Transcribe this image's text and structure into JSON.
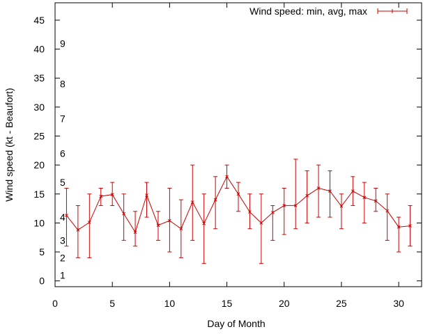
{
  "chart_data": {
    "type": "line",
    "title": "",
    "xlabel": "Day of Month",
    "ylabel": "Wind speed (kt - Beaufort)",
    "xlim": [
      0,
      32
    ],
    "ylim": [
      -1,
      48
    ],
    "xticks": [
      0,
      5,
      10,
      15,
      20,
      25,
      30
    ],
    "yticks": [
      0,
      5,
      10,
      15,
      20,
      25,
      30,
      35,
      40,
      45
    ],
    "grid": false,
    "legend": "top-right",
    "colors": {
      "series": "#cc0000",
      "axes": "#000000",
      "background": "#ffffff"
    },
    "series": [
      {
        "name": "Wind speed: min, avg, max",
        "x": [
          1,
          2,
          3,
          4,
          5,
          6,
          7,
          8,
          9,
          10,
          11,
          12,
          13,
          14,
          15,
          16,
          17,
          18,
          19,
          20,
          21,
          22,
          23,
          24,
          25,
          26,
          27,
          28,
          29,
          30,
          31
        ],
        "avg": [
          11.3,
          8.8,
          10.1,
          14.6,
          14.9,
          11.6,
          8.4,
          14.8,
          9.6,
          10.4,
          9.0,
          13.6,
          9.9,
          14.0,
          18.0,
          15.0,
          11.9,
          10.0,
          11.8,
          13.0,
          13.0,
          14.7,
          16.0,
          15.5,
          12.9,
          15.5,
          14.4,
          13.8,
          12.1,
          9.3,
          9.5
        ],
        "min": [
          6,
          4,
          4,
          13,
          13,
          7,
          6,
          11,
          7,
          5,
          4,
          7,
          3,
          9,
          16,
          12,
          9,
          3,
          7,
          8,
          9,
          10,
          11,
          11,
          9,
          13,
          10,
          12,
          7,
          5,
          6
        ],
        "max": [
          16,
          13,
          15,
          16,
          17,
          15,
          12,
          17,
          12,
          16,
          14,
          20,
          15,
          18,
          20,
          17,
          15,
          15,
          13,
          16,
          21,
          19,
          20,
          19,
          15,
          18,
          17,
          16,
          15,
          11,
          13
        ]
      }
    ],
    "beaufort_scale": [
      {
        "label": "1",
        "value": 1
      },
      {
        "label": "2",
        "value": 4
      },
      {
        "label": "3",
        "value": 7
      },
      {
        "label": "4",
        "value": 11
      },
      {
        "label": "5",
        "value": 17
      },
      {
        "label": "6",
        "value": 22
      },
      {
        "label": "7",
        "value": 28
      },
      {
        "label": "8",
        "value": 34
      },
      {
        "label": "9",
        "value": 41
      }
    ]
  }
}
